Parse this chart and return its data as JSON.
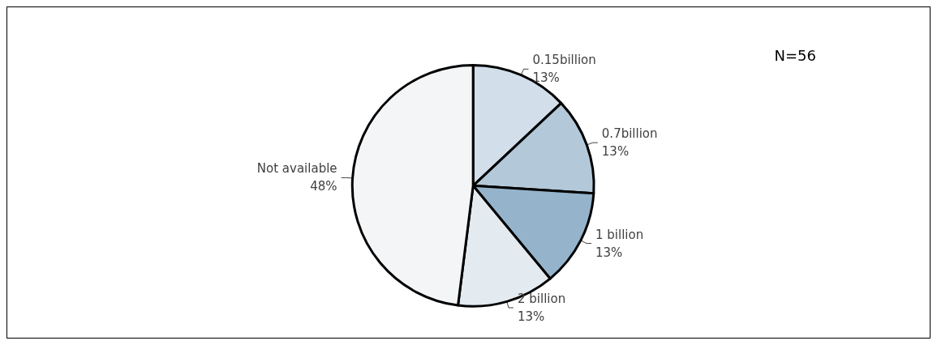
{
  "chart_data": {
    "type": "pie",
    "categories": [
      "0.15billion",
      "0.7billion",
      "1 billion",
      "2 billion",
      "Not available"
    ],
    "values": [
      13,
      13,
      13,
      13,
      48
    ],
    "value_labels": [
      "13%",
      "13%",
      "13%",
      "13%",
      "48%"
    ],
    "colors": [
      "#d2dfea",
      "#b3c9da",
      "#95b3cb",
      "#e3ebf1",
      "#f3f5f7"
    ],
    "annotations": [
      "N=56"
    ],
    "legend": false
  }
}
